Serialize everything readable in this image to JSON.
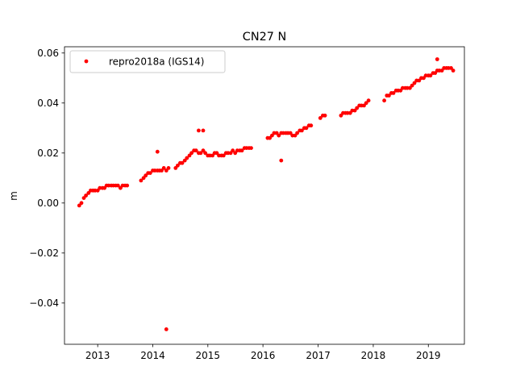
{
  "chart_data": {
    "type": "scatter",
    "title": "CN27 N",
    "xlabel": "",
    "ylabel": "m",
    "xlim": [
      "2012-05-26",
      "2019-08-28"
    ],
    "ylim": [
      -0.0565,
      0.0625
    ],
    "x_ticks": [
      "2013",
      "2014",
      "2015",
      "2016",
      "2017",
      "2018",
      "2019"
    ],
    "y_ticks": [
      "−0.04",
      "−0.02",
      "0.00",
      "0.02",
      "0.04",
      "0.06"
    ],
    "y_tick_values": [
      -0.04,
      -0.02,
      0.0,
      0.02,
      0.04,
      0.06
    ],
    "grid": false,
    "legend": {
      "position": "top-left",
      "entries": [
        "repro2018a (IGS14)"
      ]
    },
    "series": [
      {
        "name": "repro2018a (IGS14)",
        "color": "#ff0000",
        "marker": "circle",
        "x": [
          "2012-09-01",
          "2012-09-15",
          "2012-10-01",
          "2012-10-15",
          "2012-11-01",
          "2012-11-15",
          "2012-12-01",
          "2012-12-15",
          "2013-01-01",
          "2013-01-15",
          "2013-02-01",
          "2013-02-15",
          "2013-03-01",
          "2013-03-15",
          "2013-04-01",
          "2013-04-15",
          "2013-05-01",
          "2013-05-15",
          "2013-06-01",
          "2013-06-15",
          "2013-07-01",
          "2013-07-15",
          "2013-10-15",
          "2013-11-01",
          "2013-11-15",
          "2013-12-01",
          "2013-12-15",
          "2014-01-01",
          "2014-01-15",
          "2014-02-01",
          "2014-02-15",
          "2014-03-01",
          "2014-03-15",
          "2014-04-01",
          "2014-04-15",
          "2014-06-01",
          "2014-06-15",
          "2014-07-01",
          "2014-07-15",
          "2014-08-01",
          "2014-08-15",
          "2014-09-01",
          "2014-09-15",
          "2014-10-01",
          "2014-10-15",
          "2014-11-01",
          "2014-11-15",
          "2014-12-01",
          "2014-12-15",
          "2015-01-01",
          "2015-01-15",
          "2015-02-01",
          "2015-02-15",
          "2015-03-01",
          "2015-03-15",
          "2015-04-01",
          "2015-04-15",
          "2015-05-01",
          "2015-05-15",
          "2015-06-01",
          "2015-06-15",
          "2015-07-01",
          "2015-07-15",
          "2015-08-01",
          "2015-08-15",
          "2015-09-01",
          "2015-09-15",
          "2015-10-01",
          "2015-10-15",
          "2016-02-01",
          "2016-02-15",
          "2016-03-01",
          "2016-03-15",
          "2016-04-01",
          "2016-04-15",
          "2016-05-01",
          "2016-05-15",
          "2016-06-01",
          "2016-06-15",
          "2016-07-01",
          "2016-07-15",
          "2016-08-01",
          "2016-08-15",
          "2016-09-01",
          "2016-09-15",
          "2016-10-01",
          "2016-10-15",
          "2016-11-01",
          "2016-11-15",
          "2017-01-15",
          "2017-02-01",
          "2017-02-15",
          "2017-06-01",
          "2017-06-15",
          "2017-07-01",
          "2017-07-15",
          "2017-08-01",
          "2017-08-15",
          "2017-09-01",
          "2017-09-15",
          "2017-10-01",
          "2017-10-15",
          "2017-11-01",
          "2017-11-15",
          "2017-12-01",
          "2018-03-15",
          "2018-04-01",
          "2018-04-15",
          "2018-05-01",
          "2018-05-15",
          "2018-06-01",
          "2018-06-15",
          "2018-07-01",
          "2018-07-15",
          "2018-08-01",
          "2018-08-15",
          "2018-09-01",
          "2018-09-15",
          "2018-10-01",
          "2018-10-15",
          "2018-11-01",
          "2018-11-15",
          "2018-12-01",
          "2018-12-15",
          "2019-01-01",
          "2019-01-15",
          "2019-02-01",
          "2019-02-15",
          "2019-03-01",
          "2019-03-15",
          "2019-04-01",
          "2019-04-15",
          "2019-05-01",
          "2019-05-15",
          "2019-06-01",
          "2019-06-15",
          "2014-04-01",
          "2014-02-01",
          "2014-11-01",
          "2014-12-01",
          "2016-05-01",
          "2019-03-01"
        ],
        "y": [
          -0.001,
          0.0,
          0.002,
          0.003,
          0.004,
          0.005,
          0.005,
          0.005,
          0.005,
          0.006,
          0.006,
          0.006,
          0.007,
          0.007,
          0.007,
          0.007,
          0.007,
          0.007,
          0.006,
          0.007,
          0.007,
          0.007,
          0.009,
          0.01,
          0.011,
          0.012,
          0.012,
          0.013,
          0.013,
          0.013,
          0.013,
          0.013,
          0.014,
          0.013,
          0.014,
          0.014,
          0.015,
          0.016,
          0.016,
          0.017,
          0.018,
          0.019,
          0.02,
          0.021,
          0.021,
          0.02,
          0.02,
          0.021,
          0.02,
          0.019,
          0.019,
          0.019,
          0.02,
          0.02,
          0.019,
          0.019,
          0.019,
          0.02,
          0.02,
          0.02,
          0.021,
          0.02,
          0.021,
          0.021,
          0.021,
          0.022,
          0.022,
          0.022,
          0.022,
          0.026,
          0.026,
          0.027,
          0.028,
          0.028,
          0.027,
          0.028,
          0.028,
          0.028,
          0.028,
          0.028,
          0.027,
          0.027,
          0.028,
          0.029,
          0.029,
          0.03,
          0.03,
          0.031,
          0.031,
          0.034,
          0.035,
          0.035,
          0.035,
          0.036,
          0.036,
          0.036,
          0.036,
          0.037,
          0.037,
          0.038,
          0.039,
          0.039,
          0.039,
          0.04,
          0.041,
          0.041,
          0.043,
          0.043,
          0.044,
          0.044,
          0.045,
          0.045,
          0.045,
          0.046,
          0.046,
          0.046,
          0.046,
          0.047,
          0.048,
          0.049,
          0.049,
          0.05,
          0.05,
          0.051,
          0.051,
          0.051,
          0.052,
          0.052,
          0.053,
          0.053,
          0.053,
          0.054,
          0.054,
          0.054,
          0.054,
          0.053,
          -0.0505,
          0.0205,
          0.029,
          0.029,
          0.017,
          0.0575
        ]
      }
    ]
  }
}
